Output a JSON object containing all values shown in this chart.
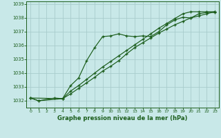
{
  "xlabel": "Graphe pression niveau de la mer (hPa)",
  "bg_color": "#c8e8e8",
  "grid_color": "#a8cccc",
  "line_color": "#1a5c1a",
  "hours": [
    0,
    1,
    2,
    3,
    4,
    5,
    6,
    7,
    8,
    9,
    10,
    11,
    12,
    13,
    14,
    15,
    16,
    17,
    18,
    19,
    20,
    21,
    22,
    23
  ],
  "line1": [
    1032.2,
    1032.0,
    null,
    1032.2,
    1032.15,
    1033.1,
    1033.65,
    1034.9,
    1035.85,
    1036.65,
    1036.7,
    1036.85,
    1036.7,
    1036.65,
    1036.7,
    1036.65,
    1037.0,
    1037.5,
    1037.85,
    1038.05,
    1038.0,
    1038.3,
    1038.4,
    1038.4
  ],
  "line2": [
    1032.2,
    null,
    null,
    null,
    1032.15,
    1032.5,
    1032.9,
    1033.3,
    1033.7,
    1034.15,
    1034.5,
    1034.9,
    1035.4,
    1035.85,
    1036.2,
    1036.55,
    1036.9,
    1037.2,
    1037.5,
    1037.75,
    1038.0,
    1038.15,
    1038.3,
    1038.45
  ],
  "line3": [
    1032.2,
    1032.0,
    null,
    null,
    1032.15,
    1032.7,
    1033.1,
    1033.55,
    1034.0,
    1034.45,
    1034.85,
    1035.25,
    1035.65,
    1036.05,
    1036.45,
    1036.85,
    1037.25,
    1037.6,
    1037.95,
    1038.3,
    1038.45,
    1038.45,
    1038.45,
    1038.45
  ],
  "ylim": [
    1031.5,
    1039.2
  ],
  "yticks": [
    1032,
    1033,
    1034,
    1035,
    1036,
    1037,
    1038,
    1039
  ],
  "xticks": [
    0,
    1,
    2,
    3,
    4,
    5,
    6,
    7,
    8,
    9,
    10,
    11,
    12,
    13,
    14,
    15,
    16,
    17,
    18,
    19,
    20,
    21,
    22,
    23
  ],
  "figw": 3.2,
  "figh": 2.0,
  "dpi": 100
}
